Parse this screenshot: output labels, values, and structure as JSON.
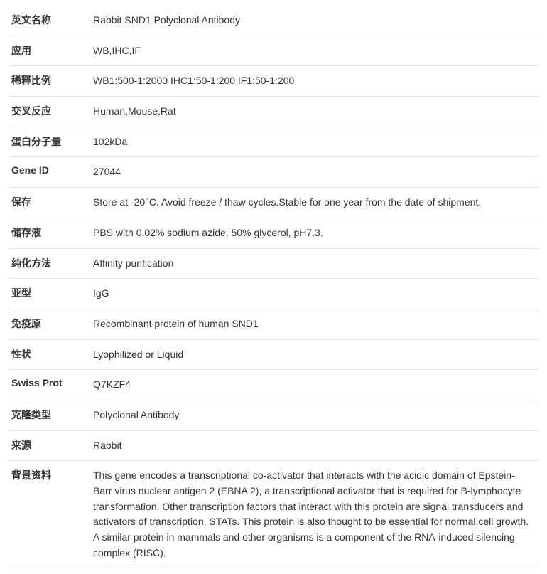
{
  "rows": [
    {
      "label": "英文名称",
      "value": "Rabbit SND1 Polyclonal Antibody"
    },
    {
      "label": "应用",
      "value": "WB,IHC,IF"
    },
    {
      "label": "稀释比例",
      "value": "WB1:500-1:2000 IHC1:50-1:200 IF1:50-1:200"
    },
    {
      "label": "交叉反应",
      "value": "Human,Mouse,Rat"
    },
    {
      "label": "蛋白分子量",
      "value": "102kDa"
    },
    {
      "label": "Gene ID",
      "value": "27044"
    },
    {
      "label": "保存",
      "value": "Store at -20°C. Avoid freeze / thaw cycles.Stable for one year from the date of shipment."
    },
    {
      "label": "储存液",
      "value": "PBS with 0.02% sodium azide, 50% glycerol, pH7.3."
    },
    {
      "label": "纯化方法",
      "value": "Affinity purification"
    },
    {
      "label": "亚型",
      "value": "IgG"
    },
    {
      "label": "免疫原",
      "value": "Recombinant protein of human SND1"
    },
    {
      "label": "性状",
      "value": "Lyophilized or Liquid"
    },
    {
      "label": "Swiss Prot",
      "value": "Q7KZF4"
    },
    {
      "label": "克隆类型",
      "value": "Polyclonal Antibody"
    },
    {
      "label": "来源",
      "value": "Rabbit"
    },
    {
      "label": "背景资料",
      "value": "This gene encodes a transcriptional co-activator that interacts with the acidic domain of Epstein-Barr virus nuclear antigen 2 (EBNA 2), a transcriptional activator that is required for B-lymphocyte transformation. Other transcription factors that interact with this protein are signal transducers and activators of transcription, STATs. This protein is also thought to be essential for normal cell growth. A similar protein in mammals and other organisms is a component of the RNA-induced silencing complex (RISC)."
    }
  ]
}
